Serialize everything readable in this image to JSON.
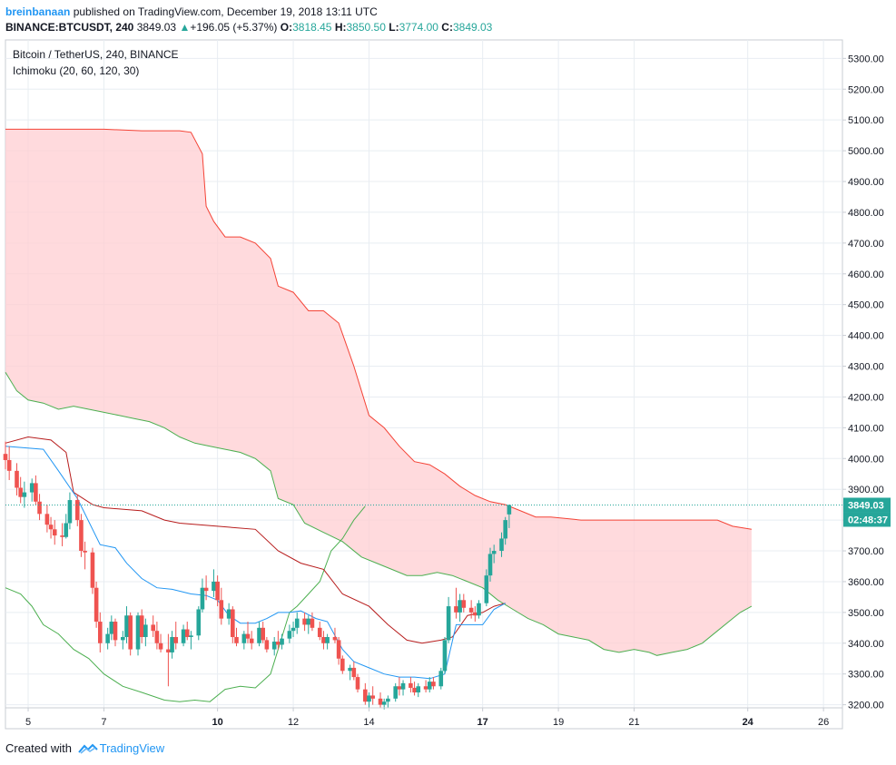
{
  "header": {
    "author": "breinbanaan",
    "published_text": "published on TradingView.com, December 19, 2018 13:11 UTC",
    "symbol_line": "BINANCE:BTCUSDT, 240",
    "last_price": "3849.03",
    "change_text": "+196.05 (+5.37%)",
    "open_label": "O:",
    "open_value": "3818.45",
    "high_label": "H:",
    "high_value": "3850.50",
    "low_label": "L:",
    "low_value": "3774.00",
    "close_label": "C:",
    "close_value": "3849.03"
  },
  "legend": {
    "title": "Bitcoin / TetherUS, 240, BINANCE",
    "indicator": "Ichimoku (20, 60, 120, 30)"
  },
  "footer": {
    "created_with": "Created with",
    "brand": "TradingView"
  },
  "colors": {
    "up": "#26a69a",
    "down": "#ef5350",
    "tenkan": "#2196f3",
    "kijun": "#b71c1c",
    "chikou": "#4caf50",
    "span_a": "#4caf50",
    "span_b": "#f44336",
    "cloud_bear": "#ffcdd2",
    "grid": "#e8edf2",
    "price_tag": "#26a69a",
    "brand": "#2196f3"
  },
  "price_labels": {
    "last": "3849.03",
    "countdown": "02:48:37"
  },
  "chart_data": {
    "type": "candlestick",
    "title": "Bitcoin / TetherUS, 240, BINANCE",
    "ylim": [
      3190,
      5360
    ],
    "xlim": [
      4.4,
      26.5
    ],
    "y_ticks": [
      3200,
      3300,
      3400,
      3500,
      3600,
      3700,
      3800,
      3900,
      4000,
      4100,
      4200,
      4300,
      4400,
      4500,
      4600,
      4700,
      4800,
      4900,
      5000,
      5100,
      5200,
      5300
    ],
    "y_tick_labels": [
      "3200.00",
      "3300.00",
      "3400.00",
      "3500.00",
      "3600.00",
      "3700.00",
      "3800.00",
      "3900.00",
      "4000.00",
      "4100.00",
      "4200.00",
      "4300.00",
      "4400.00",
      "4500.00",
      "4600.00",
      "4700.00",
      "4800.00",
      "4900.00",
      "5000.00",
      "5100.00",
      "5200.00",
      "5300.00"
    ],
    "x_ticks": [
      5,
      7,
      10,
      12,
      14,
      17,
      19,
      21,
      24,
      26
    ],
    "x_tick_labels": [
      "5",
      "7",
      "10",
      "12",
      "14",
      "17",
      "19",
      "21",
      "24",
      "26"
    ],
    "x_tick_bold": [
      false,
      false,
      true,
      false,
      false,
      true,
      false,
      false,
      true,
      false
    ],
    "last_price": 3849.03,
    "candles": [
      [
        4.4,
        4015,
        4055,
        3965,
        3995
      ],
      [
        4.5,
        3995,
        4040,
        3930,
        3960
      ],
      [
        4.7,
        3960,
        3985,
        3880,
        3905
      ],
      [
        4.8,
        3905,
        3940,
        3855,
        3875
      ],
      [
        4.9,
        3875,
        3925,
        3840,
        3890
      ],
      [
        5.1,
        3890,
        3935,
        3860,
        3920
      ],
      [
        5.2,
        3920,
        3945,
        3850,
        3860
      ],
      [
        5.3,
        3860,
        3885,
        3800,
        3820
      ],
      [
        5.5,
        3820,
        3850,
        3760,
        3785
      ],
      [
        5.6,
        3785,
        3810,
        3740,
        3770
      ],
      [
        5.7,
        3770,
        3800,
        3720,
        3750
      ],
      [
        5.9,
        3750,
        3790,
        3715,
        3745
      ],
      [
        6.0,
        3745,
        3820,
        3740,
        3790
      ],
      [
        6.1,
        3790,
        3890,
        3770,
        3865
      ],
      [
        6.3,
        3865,
        3880,
        3780,
        3800
      ],
      [
        6.4,
        3800,
        3820,
        3680,
        3700
      ],
      [
        6.5,
        3700,
        3730,
        3640,
        3695
      ],
      [
        6.7,
        3695,
        3710,
        3560,
        3580
      ],
      [
        6.8,
        3580,
        3600,
        3450,
        3470
      ],
      [
        6.9,
        3470,
        3500,
        3370,
        3400
      ],
      [
        7.1,
        3400,
        3450,
        3380,
        3430
      ],
      [
        7.2,
        3430,
        3490,
        3410,
        3470
      ],
      [
        7.3,
        3470,
        3480,
        3390,
        3410
      ],
      [
        7.5,
        3410,
        3440,
        3380,
        3420
      ],
      [
        7.6,
        3420,
        3520,
        3400,
        3490
      ],
      [
        7.7,
        3490,
        3500,
        3360,
        3380
      ],
      [
        7.9,
        3380,
        3500,
        3360,
        3490
      ],
      [
        8.0,
        3490,
        3510,
        3400,
        3420
      ],
      [
        8.1,
        3420,
        3480,
        3390,
        3460
      ],
      [
        8.3,
        3460,
        3490,
        3420,
        3440
      ],
      [
        8.4,
        3440,
        3470,
        3380,
        3400
      ],
      [
        8.5,
        3400,
        3430,
        3370,
        3380
      ],
      [
        8.7,
        3380,
        3430,
        3260,
        3370
      ],
      [
        8.8,
        3370,
        3440,
        3350,
        3420
      ],
      [
        8.9,
        3420,
        3470,
        3380,
        3400
      ],
      [
        9.1,
        3400,
        3460,
        3390,
        3445
      ],
      [
        9.2,
        3445,
        3470,
        3410,
        3420
      ],
      [
        9.3,
        3420,
        3440,
        3380,
        3425
      ],
      [
        9.5,
        3425,
        3520,
        3410,
        3510
      ],
      [
        9.6,
        3510,
        3610,
        3500,
        3580
      ],
      [
        9.7,
        3580,
        3620,
        3540,
        3570
      ],
      [
        9.9,
        3570,
        3640,
        3550,
        3600
      ],
      [
        10.0,
        3600,
        3620,
        3520,
        3540
      ],
      [
        10.1,
        3540,
        3580,
        3460,
        3480
      ],
      [
        10.3,
        3480,
        3530,
        3460,
        3510
      ],
      [
        10.4,
        3510,
        3520,
        3400,
        3420
      ],
      [
        10.5,
        3420,
        3450,
        3390,
        3400
      ],
      [
        10.7,
        3400,
        3440,
        3380,
        3430
      ],
      [
        10.8,
        3430,
        3470,
        3400,
        3415
      ],
      [
        10.9,
        3415,
        3440,
        3380,
        3400
      ],
      [
        11.1,
        3400,
        3470,
        3390,
        3450
      ],
      [
        11.2,
        3450,
        3470,
        3400,
        3410
      ],
      [
        11.3,
        3410,
        3420,
        3370,
        3380
      ],
      [
        11.5,
        3380,
        3420,
        3360,
        3405
      ],
      [
        11.6,
        3405,
        3440,
        3380,
        3395
      ],
      [
        11.7,
        3395,
        3430,
        3380,
        3415
      ],
      [
        11.9,
        3415,
        3460,
        3400,
        3440
      ],
      [
        12.0,
        3440,
        3470,
        3420,
        3450
      ],
      [
        12.1,
        3450,
        3500,
        3430,
        3480
      ],
      [
        12.3,
        3480,
        3500,
        3440,
        3460
      ],
      [
        12.4,
        3460,
        3490,
        3430,
        3480
      ],
      [
        12.5,
        3480,
        3500,
        3440,
        3450
      ],
      [
        12.7,
        3450,
        3470,
        3410,
        3420
      ],
      [
        12.8,
        3420,
        3440,
        3380,
        3400
      ],
      [
        12.9,
        3400,
        3430,
        3380,
        3420
      ],
      [
        13.1,
        3420,
        3450,
        3400,
        3410
      ],
      [
        13.2,
        3410,
        3420,
        3330,
        3350
      ],
      [
        13.3,
        3350,
        3360,
        3300,
        3310
      ],
      [
        13.5,
        3310,
        3330,
        3280,
        3320
      ],
      [
        13.6,
        3320,
        3340,
        3280,
        3290
      ],
      [
        13.7,
        3290,
        3300,
        3240,
        3250
      ],
      [
        13.9,
        3250,
        3270,
        3200,
        3210
      ],
      [
        14.0,
        3210,
        3240,
        3190,
        3230
      ],
      [
        14.1,
        3230,
        3260,
        3200,
        3220
      ],
      [
        14.3,
        3220,
        3240,
        3190,
        3200
      ],
      [
        14.4,
        3200,
        3220,
        3185,
        3210
      ],
      [
        14.5,
        3210,
        3230,
        3190,
        3220
      ],
      [
        14.7,
        3220,
        3270,
        3210,
        3260
      ],
      [
        14.8,
        3260,
        3290,
        3230,
        3250
      ],
      [
        14.9,
        3250,
        3280,
        3230,
        3270
      ],
      [
        15.1,
        3270,
        3290,
        3240,
        3255
      ],
      [
        15.2,
        3255,
        3275,
        3230,
        3240
      ],
      [
        15.3,
        3240,
        3270,
        3225,
        3260
      ],
      [
        15.5,
        3260,
        3280,
        3240,
        3250
      ],
      [
        15.6,
        3250,
        3290,
        3240,
        3275
      ],
      [
        15.7,
        3275,
        3290,
        3250,
        3260
      ],
      [
        15.9,
        3260,
        3320,
        3250,
        3310
      ],
      [
        16.0,
        3310,
        3420,
        3300,
        3410
      ],
      [
        16.1,
        3410,
        3550,
        3400,
        3520
      ],
      [
        16.3,
        3520,
        3580,
        3480,
        3500
      ],
      [
        16.4,
        3500,
        3560,
        3470,
        3540
      ],
      [
        16.5,
        3540,
        3560,
        3500,
        3515
      ],
      [
        16.7,
        3515,
        3540,
        3480,
        3500
      ],
      [
        16.8,
        3500,
        3520,
        3470,
        3490
      ],
      [
        16.9,
        3490,
        3540,
        3480,
        3530
      ],
      [
        17.1,
        3530,
        3640,
        3520,
        3620
      ],
      [
        17.2,
        3620,
        3710,
        3600,
        3690
      ],
      [
        17.3,
        3690,
        3720,
        3660,
        3700
      ],
      [
        17.5,
        3700,
        3760,
        3680,
        3740
      ],
      [
        17.6,
        3740,
        3810,
        3720,
        3800
      ],
      [
        17.7,
        3818.45,
        3850.5,
        3774,
        3849.03
      ]
    ],
    "tenkan": [
      [
        4.4,
        4040
      ],
      [
        5.4,
        4030
      ],
      [
        5.8,
        3960
      ],
      [
        6.3,
        3870
      ],
      [
        6.9,
        3720
      ],
      [
        7.3,
        3710
      ],
      [
        7.6,
        3660
      ],
      [
        8.0,
        3610
      ],
      [
        8.4,
        3580
      ],
      [
        8.8,
        3575
      ],
      [
        9.3,
        3560
      ],
      [
        9.7,
        3555
      ],
      [
        10.0,
        3540
      ],
      [
        10.3,
        3490
      ],
      [
        10.6,
        3465
      ],
      [
        11.0,
        3465
      ],
      [
        11.3,
        3480
      ],
      [
        11.6,
        3500
      ],
      [
        11.9,
        3500
      ],
      [
        12.2,
        3505
      ],
      [
        12.6,
        3480
      ],
      [
        12.9,
        3470
      ],
      [
        13.3,
        3380
      ],
      [
        13.6,
        3340
      ],
      [
        14.0,
        3320
      ],
      [
        14.4,
        3300
      ],
      [
        14.8,
        3290
      ],
      [
        15.2,
        3290
      ],
      [
        15.6,
        3285
      ],
      [
        16.0,
        3300
      ],
      [
        16.3,
        3460
      ],
      [
        16.6,
        3460
      ],
      [
        17.0,
        3460
      ],
      [
        17.3,
        3510
      ],
      [
        17.6,
        3530
      ]
    ],
    "kijun": [
      [
        4.4,
        4050
      ],
      [
        5.0,
        4070
      ],
      [
        5.6,
        4060
      ],
      [
        6.0,
        4020
      ],
      [
        6.2,
        3890
      ],
      [
        6.7,
        3850
      ],
      [
        7.0,
        3840
      ],
      [
        8.0,
        3830
      ],
      [
        8.6,
        3800
      ],
      [
        9.0,
        3790
      ],
      [
        10.0,
        3780
      ],
      [
        11.0,
        3770
      ],
      [
        11.6,
        3700
      ],
      [
        12.2,
        3660
      ],
      [
        12.8,
        3640
      ],
      [
        13.3,
        3560
      ],
      [
        14.0,
        3520
      ],
      [
        14.5,
        3460
      ],
      [
        15.0,
        3410
      ],
      [
        15.4,
        3400
      ],
      [
        15.9,
        3410
      ],
      [
        16.2,
        3420
      ],
      [
        16.6,
        3490
      ],
      [
        17.0,
        3500
      ],
      [
        17.3,
        3520
      ],
      [
        17.6,
        3530
      ]
    ],
    "chikou": [
      [
        4.4,
        3580
      ],
      [
        4.8,
        3560
      ],
      [
        5.1,
        3520
      ],
      [
        5.4,
        3460
      ],
      [
        5.8,
        3430
      ],
      [
        6.2,
        3380
      ],
      [
        6.6,
        3350
      ],
      [
        7.0,
        3300
      ],
      [
        7.5,
        3260
      ],
      [
        8.0,
        3240
      ],
      [
        8.6,
        3215
      ],
      [
        9.0,
        3210
      ],
      [
        9.4,
        3215
      ],
      [
        9.8,
        3210
      ],
      [
        10.2,
        3250
      ],
      [
        10.6,
        3260
      ],
      [
        11.0,
        3255
      ],
      [
        11.4,
        3300
      ],
      [
        11.7,
        3420
      ],
      [
        11.9,
        3500
      ],
      [
        12.1,
        3520
      ],
      [
        12.4,
        3560
      ],
      [
        12.7,
        3600
      ],
      [
        13.0,
        3700
      ],
      [
        13.3,
        3740
      ],
      [
        13.6,
        3800
      ],
      [
        13.9,
        3845
      ]
    ],
    "span_a": [
      [
        4.4,
        4280
      ],
      [
        4.7,
        4220
      ],
      [
        5.0,
        4190
      ],
      [
        5.4,
        4180
      ],
      [
        5.8,
        4160
      ],
      [
        6.2,
        4170
      ],
      [
        6.6,
        4160
      ],
      [
        7.0,
        4150
      ],
      [
        7.4,
        4140
      ],
      [
        7.8,
        4130
      ],
      [
        8.2,
        4120
      ],
      [
        8.6,
        4100
      ],
      [
        9.0,
        4070
      ],
      [
        9.4,
        4050
      ],
      [
        9.8,
        4040
      ],
      [
        10.2,
        4030
      ],
      [
        10.6,
        4020
      ],
      [
        11.0,
        4000
      ],
      [
        11.4,
        3960
      ],
      [
        11.6,
        3870
      ],
      [
        12.0,
        3850
      ],
      [
        12.3,
        3790
      ],
      [
        12.8,
        3760
      ],
      [
        13.3,
        3730
      ],
      [
        13.8,
        3680
      ],
      [
        14.2,
        3660
      ],
      [
        14.6,
        3640
      ],
      [
        15.0,
        3620
      ],
      [
        15.4,
        3620
      ],
      [
        15.8,
        3630
      ],
      [
        16.2,
        3620
      ],
      [
        16.6,
        3600
      ],
      [
        17.0,
        3580
      ],
      [
        17.4,
        3540
      ],
      [
        17.8,
        3510
      ],
      [
        18.2,
        3480
      ],
      [
        18.6,
        3460
      ],
      [
        19.0,
        3430
      ],
      [
        19.4,
        3420
      ],
      [
        19.8,
        3410
      ],
      [
        20.2,
        3380
      ],
      [
        20.6,
        3370
      ],
      [
        21.0,
        3380
      ],
      [
        21.4,
        3370
      ],
      [
        21.6,
        3360
      ],
      [
        22.0,
        3370
      ],
      [
        22.4,
        3380
      ],
      [
        22.8,
        3400
      ],
      [
        23.2,
        3440
      ],
      [
        23.6,
        3480
      ],
      [
        23.8,
        3500
      ],
      [
        24.1,
        3520
      ]
    ],
    "span_b": [
      [
        4.4,
        5070
      ],
      [
        5.0,
        5070
      ],
      [
        6.0,
        5070
      ],
      [
        7.0,
        5070
      ],
      [
        8.0,
        5065
      ],
      [
        9.0,
        5065
      ],
      [
        9.3,
        5060
      ],
      [
        9.6,
        4990
      ],
      [
        9.7,
        4820
      ],
      [
        9.9,
        4770
      ],
      [
        10.2,
        4720
      ],
      [
        10.6,
        4720
      ],
      [
        11.0,
        4700
      ],
      [
        11.4,
        4650
      ],
      [
        11.6,
        4560
      ],
      [
        12.0,
        4540
      ],
      [
        12.4,
        4480
      ],
      [
        12.8,
        4480
      ],
      [
        13.2,
        4440
      ],
      [
        13.6,
        4300
      ],
      [
        14.0,
        4140
      ],
      [
        14.4,
        4100
      ],
      [
        14.8,
        4040
      ],
      [
        15.2,
        3990
      ],
      [
        15.6,
        3980
      ],
      [
        16.0,
        3950
      ],
      [
        16.4,
        3910
      ],
      [
        16.8,
        3880
      ],
      [
        17.2,
        3860
      ],
      [
        17.6,
        3850
      ],
      [
        18.0,
        3830
      ],
      [
        18.4,
        3810
      ],
      [
        18.8,
        3810
      ],
      [
        19.2,
        3805
      ],
      [
        19.6,
        3800
      ],
      [
        20.0,
        3800
      ],
      [
        20.4,
        3800
      ],
      [
        20.8,
        3800
      ],
      [
        21.2,
        3800
      ],
      [
        21.6,
        3800
      ],
      [
        22.0,
        3800
      ],
      [
        22.4,
        3800
      ],
      [
        22.8,
        3800
      ],
      [
        23.2,
        3800
      ],
      [
        23.6,
        3780
      ],
      [
        24.1,
        3770
      ]
    ]
  }
}
